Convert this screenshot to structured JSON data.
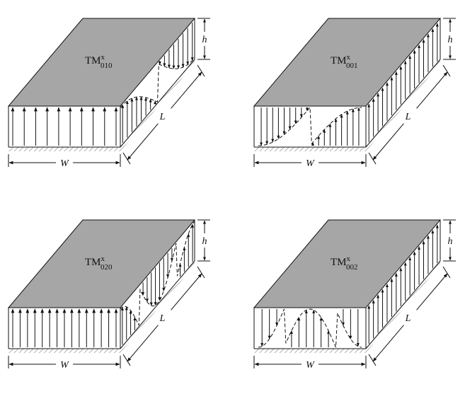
{
  "colors": {
    "patch": "#a6a6a6",
    "line": "#111111",
    "ground": "#9c9c9c"
  },
  "panels": [
    {
      "mode": "TM",
      "sup": "x",
      "sub": "010",
      "width_label": "W",
      "length_label": "L",
      "height_label": "h",
      "front_field": "uniform-up",
      "side_field": "half-cosine-along-L",
      "front_field_count": 10,
      "side_field_count": 16
    },
    {
      "mode": "TM",
      "sup": "x",
      "sub": "001",
      "width_label": "W",
      "length_label": "L",
      "height_label": "h",
      "front_field": "half-cosine-along-W",
      "side_field": "uniform-up",
      "front_field_count": 18,
      "side_field_count": 16
    },
    {
      "mode": "TM",
      "sup": "x",
      "sub": "020",
      "width_label": "W",
      "length_label": "L",
      "height_label": "h",
      "front_field": "uniform-up",
      "side_field": "full-cosine-along-L",
      "front_field_count": 15,
      "side_field_count": 18
    },
    {
      "mode": "TM",
      "sup": "x",
      "sub": "002",
      "width_label": "W",
      "length_label": "L",
      "height_label": "h",
      "front_field": "full-cosine-along-W",
      "side_field": "uniform-up",
      "front_field_count": 14,
      "side_field_count": 16
    }
  ]
}
